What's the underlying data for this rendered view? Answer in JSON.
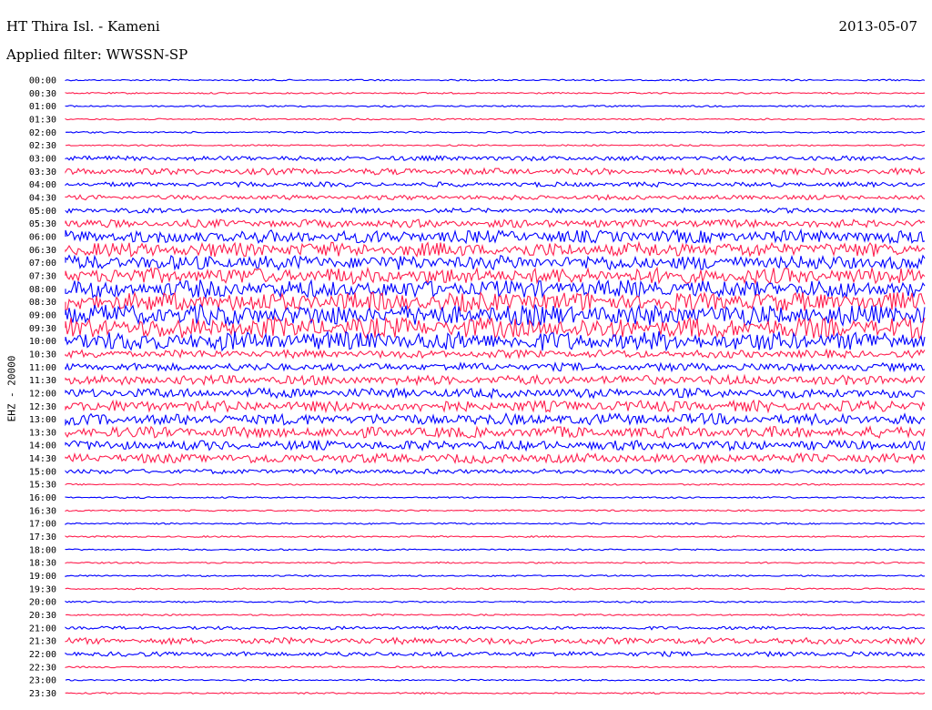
{
  "header": {
    "title": "HT Thira Isl. - Kameni",
    "date": "2013-05-07",
    "filter": "Applied filter: WWSSN-SP"
  },
  "chart_data": {
    "type": "line",
    "title": "HT Thira Isl. - Kameni",
    "ylabel": "EHZ - 20000",
    "xlabel": "",
    "series_colors": [
      "#0000ff",
      "#ff1f4f"
    ],
    "grid": false,
    "rows": [
      {
        "label": "00:00",
        "amplitude": 1
      },
      {
        "label": "00:30",
        "amplitude": 1
      },
      {
        "label": "01:00",
        "amplitude": 1
      },
      {
        "label": "01:30",
        "amplitude": 1
      },
      {
        "label": "02:00",
        "amplitude": 1
      },
      {
        "label": "02:30",
        "amplitude": 1
      },
      {
        "label": "03:00",
        "amplitude": 3
      },
      {
        "label": "03:30",
        "amplitude": 4
      },
      {
        "label": "04:00",
        "amplitude": 3
      },
      {
        "label": "04:30",
        "amplitude": 3
      },
      {
        "label": "05:00",
        "amplitude": 3
      },
      {
        "label": "05:30",
        "amplitude": 5
      },
      {
        "label": "06:00",
        "amplitude": 8
      },
      {
        "label": "06:30",
        "amplitude": 9
      },
      {
        "label": "07:00",
        "amplitude": 9
      },
      {
        "label": "07:30",
        "amplitude": 10
      },
      {
        "label": "08:00",
        "amplitude": 11
      },
      {
        "label": "08:30",
        "amplitude": 12
      },
      {
        "label": "09:00",
        "amplitude": 13
      },
      {
        "label": "09:30",
        "amplitude": 13
      },
      {
        "label": "10:00",
        "amplitude": 12
      },
      {
        "label": "10:30",
        "amplitude": 5
      },
      {
        "label": "11:00",
        "amplitude": 5
      },
      {
        "label": "11:30",
        "amplitude": 6
      },
      {
        "label": "12:00",
        "amplitude": 6
      },
      {
        "label": "12:30",
        "amplitude": 7
      },
      {
        "label": "13:00",
        "amplitude": 7
      },
      {
        "label": "13:30",
        "amplitude": 7
      },
      {
        "label": "14:00",
        "amplitude": 6
      },
      {
        "label": "14:30",
        "amplitude": 6
      },
      {
        "label": "15:00",
        "amplitude": 3
      },
      {
        "label": "15:30",
        "amplitude": 1
      },
      {
        "label": "16:00",
        "amplitude": 1
      },
      {
        "label": "16:30",
        "amplitude": 1
      },
      {
        "label": "17:00",
        "amplitude": 1
      },
      {
        "label": "17:30",
        "amplitude": 1
      },
      {
        "label": "18:00",
        "amplitude": 1
      },
      {
        "label": "18:30",
        "amplitude": 1
      },
      {
        "label": "19:00",
        "amplitude": 1
      },
      {
        "label": "19:30",
        "amplitude": 1
      },
      {
        "label": "20:00",
        "amplitude": 1
      },
      {
        "label": "20:30",
        "amplitude": 1
      },
      {
        "label": "21:00",
        "amplitude": 2
      },
      {
        "label": "21:30",
        "amplitude": 4
      },
      {
        "label": "22:00",
        "amplitude": 3
      },
      {
        "label": "22:30",
        "amplitude": 1
      },
      {
        "label": "23:00",
        "amplitude": 1
      },
      {
        "label": "23:30",
        "amplitude": 1
      }
    ]
  }
}
